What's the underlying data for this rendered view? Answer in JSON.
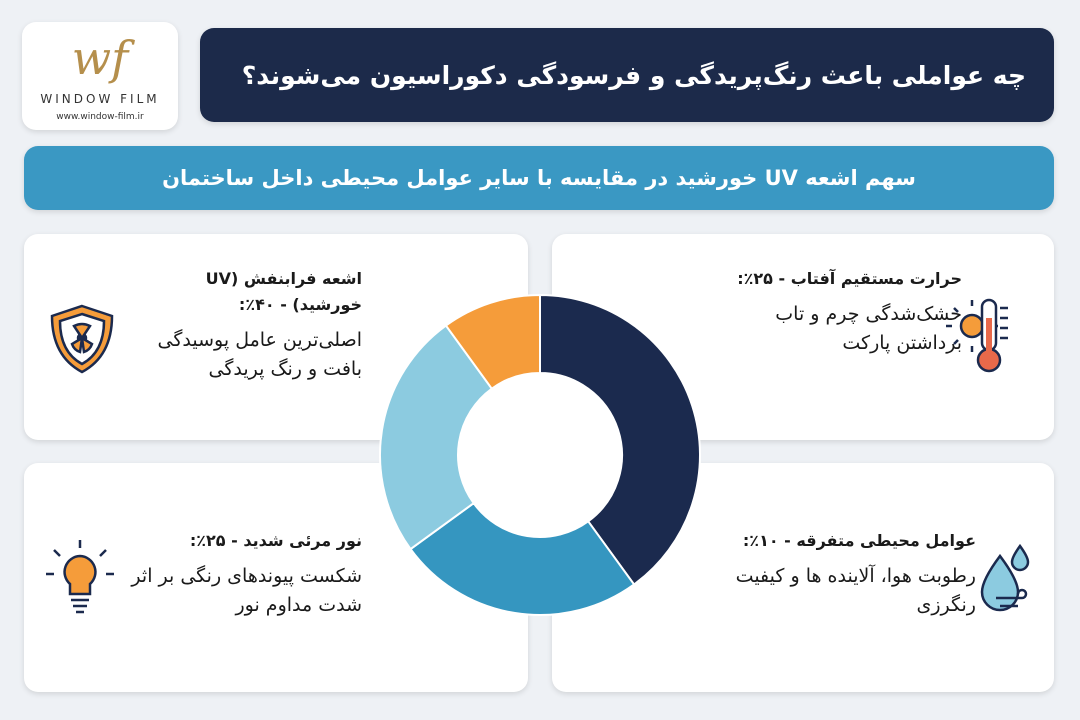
{
  "header": {
    "logo_mark": "wf",
    "logo_name": "WINDOW FILM",
    "logo_url": "www.window-film.ir",
    "title": "چه عواملی باعث رنگ‌پریدگی و فرسودگی دکوراسیون می‌شوند؟"
  },
  "subtitle": "سهم اشعه UV خورشید در مقایسه با سایر عوامل محیطی داخل ساختمان",
  "cards": [
    {
      "heading": "اشعه فرابنفش (UV خورشید) - ۴۰٪:",
      "text": "اصلی‌ترین عامل پوسیدگی بافت و رنگ پریدگی"
    },
    {
      "heading": "حرارت مستقیم آفتاب - ۲۵٪:",
      "text": "خشک‌شدگی چرم و تاب برداشتن پارکت"
    },
    {
      "heading": "نور مرئی شدید - ۲۵٪:",
      "text": "شکست پیوندهای رنگی بر اثر شدت مداوم نور"
    },
    {
      "heading": "عوامل محیطی متفرقه - ۱۰٪:",
      "text": "رطوبت هوا، آلاینده ها و کیفیت رنگرزی"
    }
  ],
  "chart_data": {
    "type": "donut",
    "values": [
      40,
      25,
      25,
      10
    ],
    "colors": [
      "#1b2a4e",
      "#3596c0",
      "#8ccbe0",
      "#f59c3a"
    ]
  }
}
